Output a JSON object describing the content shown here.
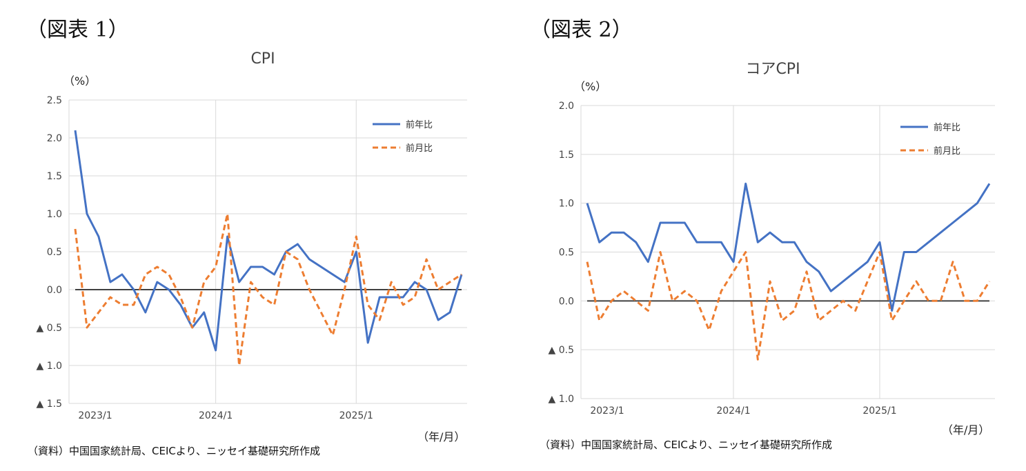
{
  "charts": [
    {
      "fig_label": "（図表 1）",
      "unit_label": "（%）",
      "x_unit_label": "（年/月）",
      "source": "（資料）中国国家統計局、CEICより、ニッセイ基礎研究所作成"
    },
    {
      "fig_label": "（図表 2）",
      "unit_label": "（%）",
      "x_unit_label": "（年/月）",
      "source": "（資料）中国国家統計局、CEICより、ニッセイ基礎研究所作成"
    }
  ],
  "colors": {
    "yoy": "#4472c4",
    "mom": "#ed7d31",
    "grid": "#d9d9d9",
    "zero": "#404040"
  },
  "chart_data": [
    {
      "type": "line",
      "title": "CPI",
      "ylabel": "（%）",
      "ylim": [
        -1.5,
        2.5
      ],
      "yticks": [
        2.5,
        2.0,
        1.5,
        1.0,
        0.5,
        0.0,
        -0.5,
        -1.0,
        -1.5
      ],
      "ytick_labels": [
        "2.5",
        "2.0",
        "1.5",
        "1.0",
        "0.5",
        "0.0",
        "▲ 0.5",
        "▲ 1.0",
        "▲ 1.5"
      ],
      "x": [
        "2023/1",
        "2023/2",
        "2023/3",
        "2023/4",
        "2023/5",
        "2023/6",
        "2023/7",
        "2023/8",
        "2023/9",
        "2023/10",
        "2023/11",
        "2023/12",
        "2024/1",
        "2024/2",
        "2024/3",
        "2024/4",
        "2024/5",
        "2024/6",
        "2024/7",
        "2024/8",
        "2024/9",
        "2024/10",
        "2024/11",
        "2024/12",
        "2025/1",
        "2025/2",
        "2025/3",
        "2025/4",
        "2025/5",
        "2025/6",
        "2025/7",
        "2025/8",
        "2025/9",
        "2025/10"
      ],
      "xtick_labels": [
        "2023/1",
        "2024/1",
        "2025/1"
      ],
      "xtick_positions": [
        "2023/1",
        "2024/1",
        "2025/1"
      ],
      "legend_position": "top-right",
      "grid": true,
      "series": [
        {
          "name": "前年比",
          "style": "solid",
          "values": [
            2.1,
            1.0,
            0.7,
            0.1,
            0.2,
            0.0,
            -0.3,
            0.1,
            0.0,
            -0.2,
            -0.5,
            -0.3,
            -0.8,
            0.7,
            0.1,
            0.3,
            0.3,
            0.2,
            0.5,
            0.6,
            0.4,
            0.3,
            0.2,
            0.1,
            0.5,
            -0.7,
            -0.1,
            -0.1,
            -0.1,
            0.1,
            0.0,
            -0.4,
            -0.3,
            0.2
          ]
        },
        {
          "name": "前月比",
          "style": "dashed",
          "values": [
            0.8,
            -0.5,
            -0.3,
            -0.1,
            -0.2,
            -0.2,
            0.2,
            0.3,
            0.2,
            -0.1,
            -0.5,
            0.1,
            0.3,
            1.0,
            -1.0,
            0.1,
            -0.1,
            -0.2,
            0.5,
            0.4,
            0.0,
            -0.3,
            -0.6,
            0.0,
            0.7,
            -0.2,
            -0.4,
            0.1,
            -0.2,
            -0.1,
            0.4,
            0.0,
            0.1,
            0.2
          ]
        }
      ]
    },
    {
      "type": "line",
      "title": "コアCPI",
      "ylabel": "（%）",
      "ylim": [
        -1.0,
        2.0
      ],
      "yticks": [
        2.0,
        1.5,
        1.0,
        0.5,
        0.0,
        -0.5,
        -1.0
      ],
      "ytick_labels": [
        "2.0",
        "1.5",
        "1.0",
        "0.5",
        "0.0",
        "▲ 0.5",
        "▲ 1.0"
      ],
      "x": [
        "2023/1",
        "2023/2",
        "2023/3",
        "2023/4",
        "2023/5",
        "2023/6",
        "2023/7",
        "2023/8",
        "2023/9",
        "2023/10",
        "2023/11",
        "2023/12",
        "2024/1",
        "2024/2",
        "2024/3",
        "2024/4",
        "2024/5",
        "2024/6",
        "2024/7",
        "2024/8",
        "2024/9",
        "2024/10",
        "2024/11",
        "2024/12",
        "2025/1",
        "2025/2",
        "2025/3",
        "2025/4",
        "2025/5",
        "2025/6",
        "2025/7",
        "2025/8",
        "2025/9",
        "2025/10"
      ],
      "xtick_labels": [
        "2023/1",
        "2024/1",
        "2025/1"
      ],
      "xtick_positions": [
        "2023/1",
        "2024/1",
        "2025/1"
      ],
      "legend_position": "top-right",
      "grid": true,
      "series": [
        {
          "name": "前年比",
          "style": "solid",
          "values": [
            1.0,
            0.6,
            0.7,
            0.7,
            0.6,
            0.4,
            0.8,
            0.8,
            0.8,
            0.6,
            0.6,
            0.6,
            0.4,
            1.2,
            0.6,
            0.7,
            0.6,
            0.6,
            0.4,
            0.3,
            0.1,
            0.2,
            0.3,
            0.4,
            0.6,
            -0.1,
            0.5,
            0.5,
            0.6,
            0.7,
            0.8,
            0.9,
            1.0,
            1.2
          ]
        },
        {
          "name": "前月比",
          "style": "dashed",
          "values": [
            0.4,
            -0.2,
            0.0,
            0.1,
            0.0,
            -0.1,
            0.5,
            0.0,
            0.1,
            0.0,
            -0.3,
            0.1,
            0.3,
            0.5,
            -0.6,
            0.2,
            -0.2,
            -0.1,
            0.3,
            -0.2,
            -0.1,
            0.0,
            -0.1,
            0.2,
            0.5,
            -0.2,
            0.0,
            0.2,
            0.0,
            0.0,
            0.4,
            0.0,
            0.0,
            0.2
          ]
        }
      ]
    }
  ]
}
